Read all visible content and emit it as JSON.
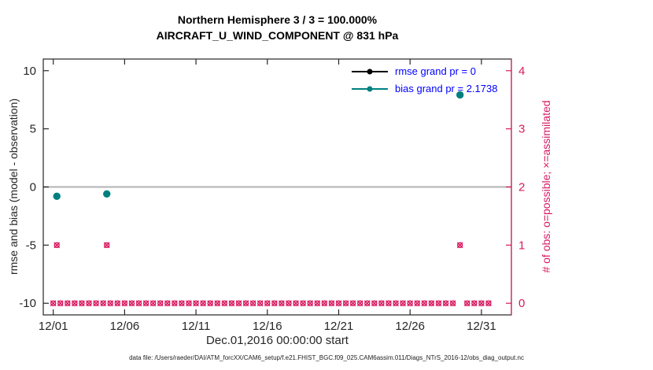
{
  "chart_data": {
    "type": "line",
    "title": "Northern Hemisphere 3 / 3 = 100.000%",
    "subtitle": "AIRCRAFT_U_WIND_COMPONENT @ 831 hPa",
    "xlabel": "Dec.01,2016 00:00:00 start",
    "ylabel_left": "rmse and bias (model - observation)",
    "ylabel_right": "# of obs: o=possible; ×=assimilated",
    "xlim": [
      0.3,
      33.1
    ],
    "ylim_left": [
      -11,
      11
    ],
    "ylim_right": [
      -0.2,
      4.2
    ],
    "right_axis_map": "right = (left + 10) / 5",
    "grid": "off",
    "legend_position": "top-right-inside",
    "legend_text_color": "#0000ff",
    "zero_line": {
      "y": 0,
      "color": "#b2b2b2"
    },
    "xticks": {
      "days": [
        1,
        6,
        11,
        16,
        21,
        26,
        31
      ],
      "labels": [
        "12/01",
        "12/06",
        "12/11",
        "12/16",
        "12/21",
        "12/26",
        "12/31"
      ]
    },
    "yticks_left": [
      -10,
      -5,
      0,
      5,
      10
    ],
    "yticks_right": [
      0,
      1,
      2,
      3,
      4
    ],
    "series": [
      {
        "name": "rmse",
        "legend": "rmse grand pr = 0",
        "color": "#000000",
        "grand_value": 0,
        "points": []
      },
      {
        "name": "bias",
        "legend": "bias grand pr = 2.1738",
        "color": "#008080",
        "grand_value": 2.1738,
        "points": [
          {
            "day": 1.25,
            "value": -0.8
          },
          {
            "day": 4.75,
            "value": -0.6
          },
          {
            "day": 29.5,
            "value": 7.92
          }
        ]
      }
    ],
    "obs_counts": {
      "color": "#d81b60",
      "marker_note": "o=possible overlaid with ×=assimilated",
      "nonzero": [
        {
          "day": 1.25,
          "count": 1
        },
        {
          "day": 4.75,
          "count": 1
        },
        {
          "day": 29.5,
          "count": 1
        }
      ],
      "zero_row_days": [
        1,
        1.5,
        2,
        2.5,
        3,
        3.5,
        4,
        4.5,
        5,
        5.5,
        6,
        6.5,
        7,
        7.5,
        8,
        8.5,
        9,
        9.5,
        10,
        10.5,
        11,
        11.5,
        12,
        12.5,
        13,
        13.5,
        14,
        14.5,
        15,
        15.5,
        16,
        16.5,
        17,
        17.5,
        18,
        18.5,
        19,
        19.5,
        20,
        20.5,
        21,
        21.5,
        22,
        22.5,
        23,
        23.5,
        24,
        24.5,
        25,
        25.5,
        26,
        26.5,
        27,
        27.5,
        28,
        28.5,
        29,
        30,
        30.5,
        31,
        31.5
      ]
    }
  },
  "footer": {
    "data_file": "data file: /Users/raeder/DAI/ATM_forcXX/CAM6_setup/f.e21.FHIST_BGC.f09_025.CAM6assim.011/Diags_NTrS_2016-12/obs_diag_output.nc"
  }
}
